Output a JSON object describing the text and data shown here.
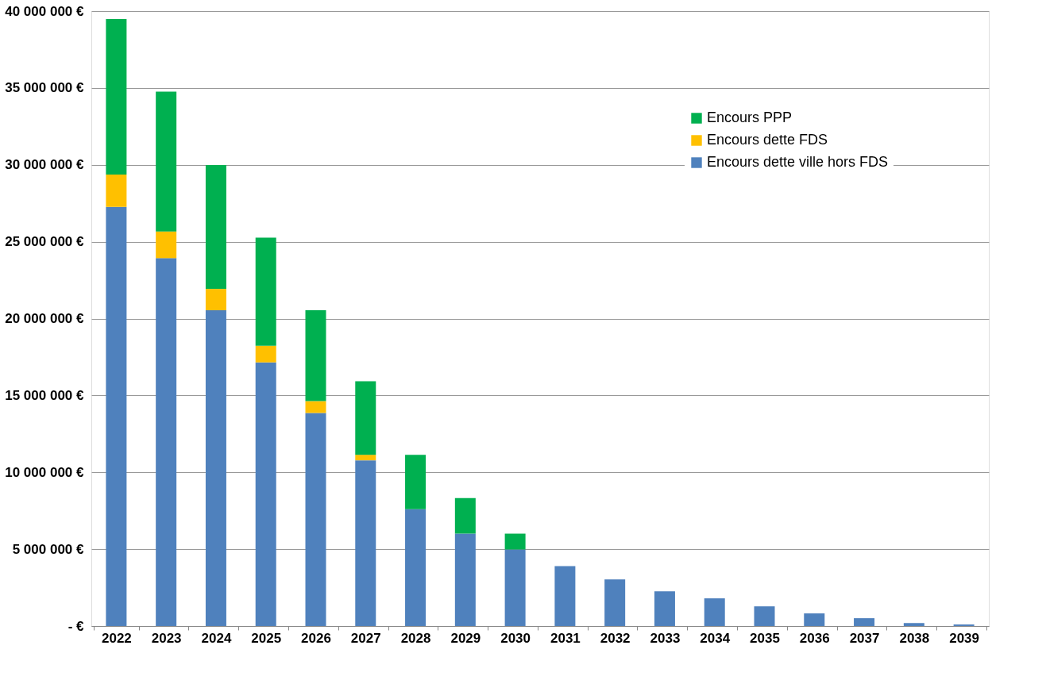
{
  "chart_data": {
    "type": "bar",
    "stacked": true,
    "categories": [
      "2022",
      "2023",
      "2024",
      "2025",
      "2026",
      "2027",
      "2028",
      "2029",
      "2030",
      "2031",
      "2032",
      "2033",
      "2034",
      "2035",
      "2036",
      "2037",
      "2038",
      "2039"
    ],
    "series": [
      {
        "name": "Encours dette ville hors FDS",
        "color": "#4f81bd",
        "values": [
          27270000,
          23930000,
          20540000,
          17150000,
          13860000,
          10780000,
          7600000,
          6010000,
          4980000,
          3900000,
          3030000,
          2260000,
          1800000,
          1280000,
          820000,
          510000,
          200000,
          100000
        ]
      },
      {
        "name": "Encours dette FDS",
        "color": "#ffc000",
        "values": [
          2100000,
          1740000,
          1390000,
          1080000,
          770000,
          360000,
          null,
          null,
          null,
          null,
          null,
          null,
          null,
          null,
          null,
          null,
          null,
          null
        ]
      },
      {
        "name": "Encours PPP",
        "color": "#00b050",
        "values": [
          10120000,
          9090000,
          8060000,
          7030000,
          5910000,
          4780000,
          3540000,
          2310000,
          1030000,
          null,
          null,
          null,
          null,
          null,
          null,
          null,
          null,
          null
        ]
      }
    ],
    "ylim": [
      0,
      40000000
    ],
    "yticks": [
      {
        "value": 0,
        "label": "- €"
      },
      {
        "value": 5000000,
        "label": "5 000 000 €"
      },
      {
        "value": 10000000,
        "label": "10 000 000 €"
      },
      {
        "value": 15000000,
        "label": "15 000 000 €"
      },
      {
        "value": 20000000,
        "label": "20 000 000 €"
      },
      {
        "value": 25000000,
        "label": "25 000 000 €"
      },
      {
        "value": 30000000,
        "label": "30 000 000 €"
      },
      {
        "value": 35000000,
        "label": "35 000 000 €"
      },
      {
        "value": 40000000,
        "label": "40 000 000 €"
      }
    ],
    "grid": "y",
    "legend": "top right"
  }
}
